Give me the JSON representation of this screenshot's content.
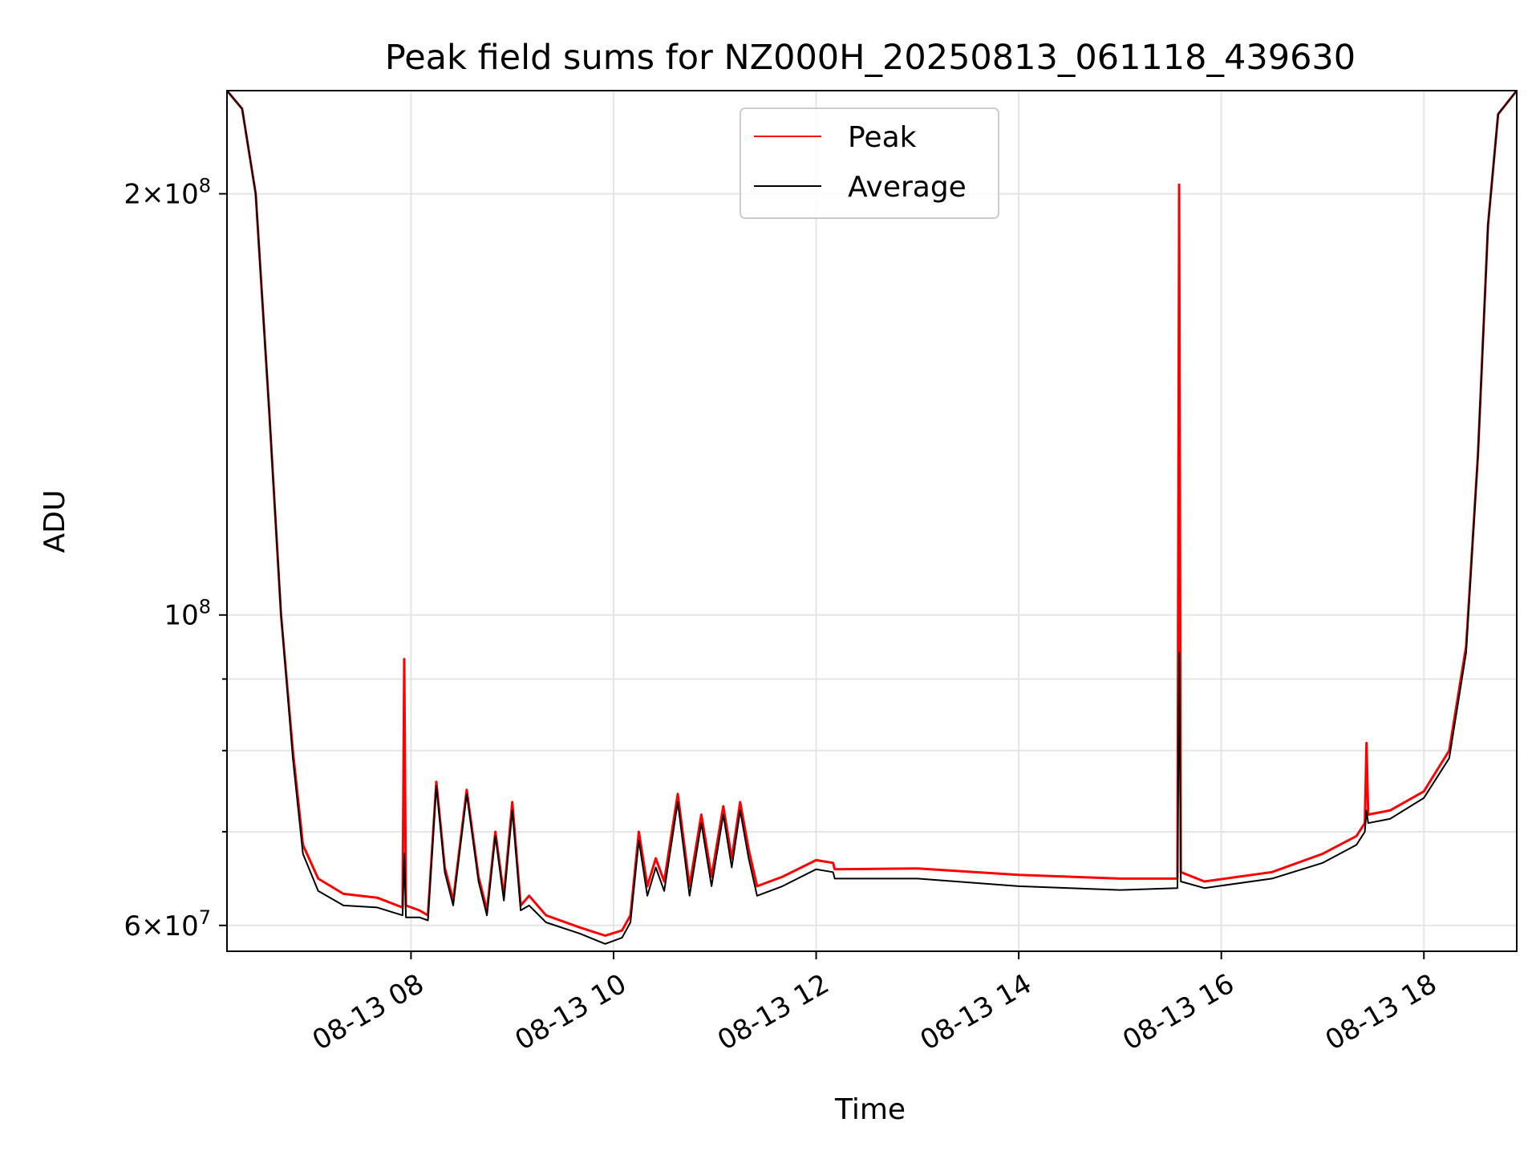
{
  "chart_data": {
    "type": "line",
    "title": "Peak field sums for NZ000H_20250813_061118_439630",
    "xlabel": "Time",
    "ylabel": "ADU",
    "yscale": "log",
    "xlim": [
      "2025-08-13T06:11",
      "2025-08-13T18:55"
    ],
    "ylim": [
      57500000,
      237000000
    ],
    "grid": true,
    "legend_position": "top-center",
    "x_ticks": [
      {
        "value": "2025-08-13T08:00",
        "label": "08-13 08"
      },
      {
        "value": "2025-08-13T10:00",
        "label": "08-13 10"
      },
      {
        "value": "2025-08-13T12:00",
        "label": "08-13 12"
      },
      {
        "value": "2025-08-13T14:00",
        "label": "08-13 14"
      },
      {
        "value": "2025-08-13T16:00",
        "label": "08-13 16"
      },
      {
        "value": "2025-08-13T18:00",
        "label": "08-13 18"
      }
    ],
    "y_ticks": [
      {
        "value": 60000000,
        "mantissa": "6",
        "exponent": "7"
      },
      {
        "value": 100000000,
        "mantissa": "",
        "exponent": "8"
      },
      {
        "value": 200000000,
        "mantissa": "2",
        "exponent": "8"
      }
    ],
    "colors": {
      "peak": "#ff0000",
      "average": "#000000"
    },
    "series": [
      {
        "name": "Peak",
        "color": "#ff0000",
        "points": [
          [
            "2025-08-13T06:11",
            237000000
          ],
          [
            "2025-08-13T06:20",
            230000000
          ],
          [
            "2025-08-13T06:28",
            200000000
          ],
          [
            "2025-08-13T06:36",
            140000000
          ],
          [
            "2025-08-13T06:43",
            100000000
          ],
          [
            "2025-08-13T06:50",
            80000000
          ],
          [
            "2025-08-13T06:56",
            68500000
          ],
          [
            "2025-08-13T07:05",
            64800000
          ],
          [
            "2025-08-13T07:20",
            63200000
          ],
          [
            "2025-08-13T07:40",
            62800000
          ],
          [
            "2025-08-13T07:55",
            61800000
          ],
          [
            "2025-08-13T07:56",
            93000000
          ],
          [
            "2025-08-13T07:57",
            62000000
          ],
          [
            "2025-08-13T08:05",
            61500000
          ],
          [
            "2025-08-13T08:10",
            61000000
          ],
          [
            "2025-08-13T08:15",
            76000000
          ],
          [
            "2025-08-13T08:20",
            66000000
          ],
          [
            "2025-08-13T08:25",
            62500000
          ],
          [
            "2025-08-13T08:33",
            75000000
          ],
          [
            "2025-08-13T08:40",
            65000000
          ],
          [
            "2025-08-13T08:45",
            61500000
          ],
          [
            "2025-08-13T08:50",
            70000000
          ],
          [
            "2025-08-13T08:55",
            63000000
          ],
          [
            "2025-08-13T09:00",
            73500000
          ],
          [
            "2025-08-13T09:05",
            62000000
          ],
          [
            "2025-08-13T09:10",
            63000000
          ],
          [
            "2025-08-13T09:20",
            61000000
          ],
          [
            "2025-08-13T09:40",
            59800000
          ],
          [
            "2025-08-13T09:55",
            59000000
          ],
          [
            "2025-08-13T10:05",
            59500000
          ],
          [
            "2025-08-13T10:10",
            61000000
          ],
          [
            "2025-08-13T10:15",
            70000000
          ],
          [
            "2025-08-13T10:20",
            64000000
          ],
          [
            "2025-08-13T10:25",
            67000000
          ],
          [
            "2025-08-13T10:30",
            64500000
          ],
          [
            "2025-08-13T10:38",
            74500000
          ],
          [
            "2025-08-13T10:45",
            64000000
          ],
          [
            "2025-08-13T10:52",
            72000000
          ],
          [
            "2025-08-13T10:58",
            65000000
          ],
          [
            "2025-08-13T11:05",
            73000000
          ],
          [
            "2025-08-13T11:10",
            67000000
          ],
          [
            "2025-08-13T11:15",
            73500000
          ],
          [
            "2025-08-13T11:20",
            68000000
          ],
          [
            "2025-08-13T11:25",
            64000000
          ],
          [
            "2025-08-13T11:40",
            65000000
          ],
          [
            "2025-08-13T12:00",
            66800000
          ],
          [
            "2025-08-13T12:10",
            66500000
          ],
          [
            "2025-08-13T12:11",
            65800000
          ],
          [
            "2025-08-13T13:00",
            65900000
          ],
          [
            "2025-08-13T14:00",
            65200000
          ],
          [
            "2025-08-13T15:00",
            64800000
          ],
          [
            "2025-08-13T15:34",
            64800000
          ],
          [
            "2025-08-13T15:35",
            203000000
          ],
          [
            "2025-08-13T15:36",
            65500000
          ],
          [
            "2025-08-13T15:50",
            64500000
          ],
          [
            "2025-08-13T16:30",
            65500000
          ],
          [
            "2025-08-13T17:00",
            67500000
          ],
          [
            "2025-08-13T17:20",
            69500000
          ],
          [
            "2025-08-13T17:25",
            71000000
          ],
          [
            "2025-08-13T17:26",
            81000000
          ],
          [
            "2025-08-13T17:27",
            72000000
          ],
          [
            "2025-08-13T17:40",
            72500000
          ],
          [
            "2025-08-13T18:00",
            74800000
          ],
          [
            "2025-08-13T18:15",
            80000000
          ],
          [
            "2025-08-13T18:25",
            95000000
          ],
          [
            "2025-08-13T18:32",
            130000000
          ],
          [
            "2025-08-13T18:38",
            190000000
          ],
          [
            "2025-08-13T18:44",
            228000000
          ],
          [
            "2025-08-13T18:55",
            237000000
          ]
        ]
      },
      {
        "name": "Average",
        "color": "#000000",
        "points": [
          [
            "2025-08-13T06:11",
            237000000
          ],
          [
            "2025-08-13T06:20",
            230000000
          ],
          [
            "2025-08-13T06:28",
            200000000
          ],
          [
            "2025-08-13T06:36",
            140000000
          ],
          [
            "2025-08-13T06:43",
            100000000
          ],
          [
            "2025-08-13T06:50",
            79000000
          ],
          [
            "2025-08-13T06:56",
            67500000
          ],
          [
            "2025-08-13T07:05",
            63500000
          ],
          [
            "2025-08-13T07:20",
            62000000
          ],
          [
            "2025-08-13T07:40",
            61800000
          ],
          [
            "2025-08-13T07:55",
            61000000
          ],
          [
            "2025-08-13T07:56",
            67500000
          ],
          [
            "2025-08-13T07:57",
            60800000
          ],
          [
            "2025-08-13T08:05",
            60800000
          ],
          [
            "2025-08-13T08:10",
            60500000
          ],
          [
            "2025-08-13T08:15",
            75500000
          ],
          [
            "2025-08-13T08:20",
            65500000
          ],
          [
            "2025-08-13T08:25",
            62000000
          ],
          [
            "2025-08-13T08:33",
            74500000
          ],
          [
            "2025-08-13T08:40",
            64500000
          ],
          [
            "2025-08-13T08:45",
            61000000
          ],
          [
            "2025-08-13T08:50",
            69500000
          ],
          [
            "2025-08-13T08:55",
            62500000
          ],
          [
            "2025-08-13T09:00",
            72500000
          ],
          [
            "2025-08-13T09:05",
            61500000
          ],
          [
            "2025-08-13T09:10",
            62000000
          ],
          [
            "2025-08-13T09:20",
            60300000
          ],
          [
            "2025-08-13T09:40",
            59200000
          ],
          [
            "2025-08-13T09:55",
            58200000
          ],
          [
            "2025-08-13T10:05",
            58800000
          ],
          [
            "2025-08-13T10:10",
            60300000
          ],
          [
            "2025-08-13T10:15",
            69000000
          ],
          [
            "2025-08-13T10:20",
            63000000
          ],
          [
            "2025-08-13T10:25",
            66000000
          ],
          [
            "2025-08-13T10:30",
            63500000
          ],
          [
            "2025-08-13T10:38",
            73500000
          ],
          [
            "2025-08-13T10:45",
            63000000
          ],
          [
            "2025-08-13T10:52",
            71000000
          ],
          [
            "2025-08-13T10:58",
            64000000
          ],
          [
            "2025-08-13T11:05",
            72000000
          ],
          [
            "2025-08-13T11:10",
            66000000
          ],
          [
            "2025-08-13T11:15",
            72500000
          ],
          [
            "2025-08-13T11:20",
            67000000
          ],
          [
            "2025-08-13T11:25",
            63000000
          ],
          [
            "2025-08-13T11:40",
            64000000
          ],
          [
            "2025-08-13T12:00",
            65800000
          ],
          [
            "2025-08-13T12:10",
            65500000
          ],
          [
            "2025-08-13T12:11",
            64800000
          ],
          [
            "2025-08-13T13:00",
            64800000
          ],
          [
            "2025-08-13T14:00",
            64000000
          ],
          [
            "2025-08-13T15:00",
            63600000
          ],
          [
            "2025-08-13T15:34",
            63800000
          ],
          [
            "2025-08-13T15:35",
            94000000
          ],
          [
            "2025-08-13T15:36",
            64500000
          ],
          [
            "2025-08-13T15:50",
            63800000
          ],
          [
            "2025-08-13T16:30",
            64800000
          ],
          [
            "2025-08-13T17:00",
            66500000
          ],
          [
            "2025-08-13T17:20",
            68500000
          ],
          [
            "2025-08-13T17:25",
            70000000
          ],
          [
            "2025-08-13T17:26",
            72500000
          ],
          [
            "2025-08-13T17:27",
            71000000
          ],
          [
            "2025-08-13T17:40",
            71500000
          ],
          [
            "2025-08-13T18:00",
            74000000
          ],
          [
            "2025-08-13T18:15",
            79000000
          ],
          [
            "2025-08-13T18:25",
            94000000
          ],
          [
            "2025-08-13T18:32",
            130000000
          ],
          [
            "2025-08-13T18:38",
            190000000
          ],
          [
            "2025-08-13T18:44",
            228000000
          ],
          [
            "2025-08-13T18:55",
            237000000
          ]
        ]
      }
    ]
  }
}
